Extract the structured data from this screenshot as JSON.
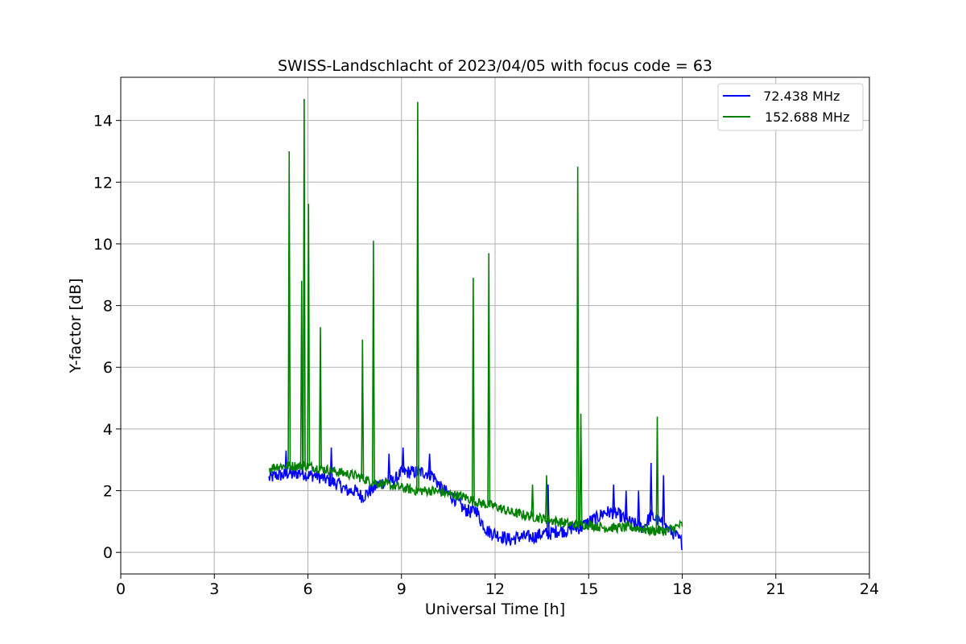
{
  "chart_data": {
    "type": "line",
    "title": "SWISS-Landschlacht of 2023/04/05 with focus code = 63",
    "xlabel": "Universal Time [h]",
    "ylabel": "Y-factor [dB]",
    "xlim": [
      0,
      24
    ],
    "ylim": [
      -0.7,
      15.4
    ],
    "xticks": [
      0,
      3,
      6,
      9,
      12,
      15,
      18,
      21,
      24
    ],
    "yticks": [
      0,
      2,
      4,
      6,
      8,
      10,
      12,
      14
    ],
    "grid": true,
    "legend_position": "upper-right",
    "series": [
      {
        "name": "72.438 MHz",
        "legend_label": " 72.438 MHz",
        "color": "#0000ff",
        "x": [
          4.75,
          5.0,
          5.25,
          5.4,
          5.5,
          5.75,
          6.0,
          6.25,
          6.5,
          6.75,
          7.0,
          7.25,
          7.5,
          7.75,
          8.0,
          8.25,
          8.5,
          8.75,
          9.0,
          9.25,
          9.5,
          9.75,
          10.0,
          10.25,
          10.5,
          10.75,
          11.0,
          11.25,
          11.4,
          11.5,
          11.75,
          12.0,
          12.25,
          12.5,
          12.75,
          13.0,
          13.25,
          13.5,
          13.75,
          14.0,
          14.25,
          14.5,
          14.75,
          15.0,
          15.25,
          15.5,
          15.75,
          16.0,
          16.25,
          16.5,
          16.75,
          17.0,
          17.25,
          17.5,
          17.75,
          18.0
        ],
        "y": [
          2.4,
          2.5,
          2.5,
          2.6,
          2.5,
          2.6,
          2.5,
          2.5,
          2.4,
          2.3,
          2.2,
          2.0,
          2.0,
          1.8,
          2.0,
          2.2,
          2.3,
          2.3,
          2.6,
          2.6,
          2.6,
          2.6,
          2.5,
          2.1,
          1.9,
          1.7,
          1.4,
          1.3,
          1.4,
          1.1,
          0.7,
          0.6,
          0.5,
          0.4,
          0.5,
          0.5,
          0.5,
          0.6,
          0.6,
          0.7,
          0.7,
          0.8,
          0.8,
          1.0,
          1.1,
          1.3,
          1.3,
          1.2,
          1.0,
          0.9,
          0.8,
          1.2,
          1.0,
          0.8,
          0.6,
          0.3
        ],
        "spikes": [
          [
            5.3,
            3.3
          ],
          [
            6.75,
            3.4
          ],
          [
            8.6,
            3.2
          ],
          [
            9.05,
            3.4
          ],
          [
            9.9,
            3.2
          ],
          [
            13.7,
            2.2
          ],
          [
            15.8,
            2.2
          ],
          [
            16.2,
            2.0
          ],
          [
            16.6,
            2.0
          ],
          [
            17.0,
            2.9
          ],
          [
            17.4,
            2.5
          ]
        ]
      },
      {
        "name": "152.688 MHz",
        "legend_label": "152.688 MHz",
        "color": "#008000",
        "x": [
          4.75,
          5.0,
          5.5,
          6.0,
          6.5,
          7.0,
          7.5,
          8.0,
          8.5,
          9.0,
          9.5,
          10.0,
          10.5,
          11.0,
          11.5,
          12.0,
          12.5,
          13.0,
          13.5,
          14.0,
          14.5,
          15.0,
          15.5,
          16.0,
          16.5,
          17.0,
          17.5,
          18.0
        ],
        "y": [
          2.7,
          2.8,
          2.8,
          2.8,
          2.7,
          2.6,
          2.5,
          2.3,
          2.2,
          2.1,
          2.0,
          2.0,
          1.9,
          1.8,
          1.6,
          1.5,
          1.3,
          1.2,
          1.1,
          1.0,
          0.9,
          0.9,
          0.8,
          0.8,
          0.8,
          0.7,
          0.7,
          0.9
        ],
        "spikes": [
          [
            5.4,
            13.0
          ],
          [
            5.8,
            8.8
          ],
          [
            5.88,
            14.7
          ],
          [
            6.02,
            11.3
          ],
          [
            6.4,
            7.3
          ],
          [
            7.75,
            6.9
          ],
          [
            8.1,
            10.1
          ],
          [
            9.52,
            14.6
          ],
          [
            11.3,
            8.9
          ],
          [
            11.8,
            9.7
          ],
          [
            13.2,
            2.2
          ],
          [
            13.65,
            2.5
          ],
          [
            14.65,
            12.5
          ],
          [
            14.75,
            4.5
          ],
          [
            17.2,
            4.4
          ]
        ]
      }
    ]
  }
}
